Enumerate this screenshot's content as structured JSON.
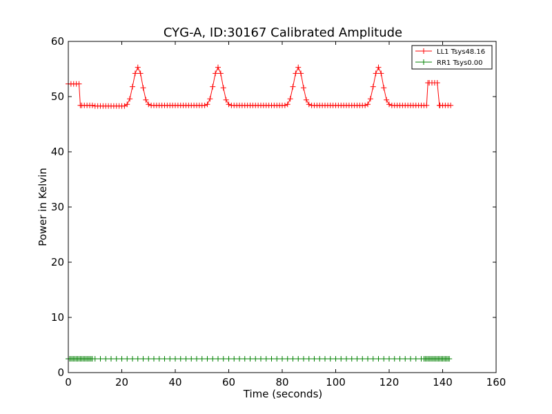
{
  "chart_data": {
    "type": "line",
    "title": "CYG-A, ID:30167 Calibrated Amplitude",
    "xlabel": "Time (seconds)",
    "ylabel": "Power in Kelvin",
    "xlim": [
      0,
      160
    ],
    "ylim": [
      0,
      60
    ],
    "xticks": [
      "0",
      "20",
      "40",
      "60",
      "80",
      "100",
      "120",
      "140",
      "160"
    ],
    "yticks": [
      "0",
      "10",
      "20",
      "30",
      "40",
      "50",
      "60"
    ],
    "grid": false,
    "legend_position": "top-right",
    "series": [
      {
        "name": "LL1 Tsys48.16",
        "color": "#ff0000",
        "marker": "+",
        "points": [
          [
            0,
            52.3
          ],
          [
            1,
            52.3
          ],
          [
            2,
            52.3
          ],
          [
            3,
            52.3
          ],
          [
            4,
            52.3
          ],
          [
            4.5,
            48.4
          ],
          [
            5,
            48.4
          ],
          [
            6,
            48.4
          ],
          [
            7,
            48.4
          ],
          [
            8,
            48.4
          ],
          [
            9,
            48.4
          ],
          [
            10,
            48.3
          ],
          [
            11,
            48.3
          ],
          [
            12,
            48.3
          ],
          [
            13,
            48.3
          ],
          [
            14,
            48.3
          ],
          [
            15,
            48.3
          ],
          [
            16,
            48.3
          ],
          [
            17,
            48.3
          ],
          [
            18,
            48.3
          ],
          [
            19,
            48.3
          ],
          [
            20,
            48.3
          ],
          [
            21,
            48.3
          ],
          [
            22,
            48.6
          ],
          [
            23,
            49.6
          ],
          [
            24,
            51.8
          ],
          [
            25,
            54.2
          ],
          [
            26,
            55.3
          ],
          [
            27,
            54.2
          ],
          [
            28,
            51.6
          ],
          [
            29,
            49.4
          ],
          [
            30,
            48.6
          ],
          [
            31,
            48.4
          ],
          [
            32,
            48.4
          ],
          [
            33,
            48.4
          ],
          [
            34,
            48.4
          ],
          [
            35,
            48.4
          ],
          [
            36,
            48.4
          ],
          [
            37,
            48.4
          ],
          [
            38,
            48.4
          ],
          [
            39,
            48.4
          ],
          [
            40,
            48.4
          ],
          [
            41,
            48.4
          ],
          [
            42,
            48.4
          ],
          [
            43,
            48.4
          ],
          [
            44,
            48.4
          ],
          [
            45,
            48.4
          ],
          [
            46,
            48.4
          ],
          [
            47,
            48.4
          ],
          [
            48,
            48.4
          ],
          [
            49,
            48.4
          ],
          [
            50,
            48.4
          ],
          [
            51,
            48.4
          ],
          [
            52,
            48.6
          ],
          [
            53,
            49.6
          ],
          [
            54,
            51.8
          ],
          [
            55,
            54.2
          ],
          [
            56,
            55.3
          ],
          [
            57,
            54.2
          ],
          [
            58,
            51.6
          ],
          [
            59,
            49.4
          ],
          [
            60,
            48.6
          ],
          [
            61,
            48.4
          ],
          [
            62,
            48.4
          ],
          [
            63,
            48.4
          ],
          [
            64,
            48.4
          ],
          [
            65,
            48.4
          ],
          [
            66,
            48.4
          ],
          [
            67,
            48.4
          ],
          [
            68,
            48.4
          ],
          [
            69,
            48.4
          ],
          [
            70,
            48.4
          ],
          [
            71,
            48.4
          ],
          [
            72,
            48.4
          ],
          [
            73,
            48.4
          ],
          [
            74,
            48.4
          ],
          [
            75,
            48.4
          ],
          [
            76,
            48.4
          ],
          [
            77,
            48.4
          ],
          [
            78,
            48.4
          ],
          [
            79,
            48.4
          ],
          [
            80,
            48.4
          ],
          [
            81,
            48.4
          ],
          [
            82,
            48.6
          ],
          [
            83,
            49.6
          ],
          [
            84,
            51.8
          ],
          [
            85,
            54.2
          ],
          [
            86,
            55.3
          ],
          [
            87,
            54.2
          ],
          [
            88,
            51.6
          ],
          [
            89,
            49.4
          ],
          [
            90,
            48.6
          ],
          [
            91,
            48.4
          ],
          [
            92,
            48.4
          ],
          [
            93,
            48.4
          ],
          [
            94,
            48.4
          ],
          [
            95,
            48.4
          ],
          [
            96,
            48.4
          ],
          [
            97,
            48.4
          ],
          [
            98,
            48.4
          ],
          [
            99,
            48.4
          ],
          [
            100,
            48.4
          ],
          [
            101,
            48.4
          ],
          [
            102,
            48.4
          ],
          [
            103,
            48.4
          ],
          [
            104,
            48.4
          ],
          [
            105,
            48.4
          ],
          [
            106,
            48.4
          ],
          [
            107,
            48.4
          ],
          [
            108,
            48.4
          ],
          [
            109,
            48.4
          ],
          [
            110,
            48.4
          ],
          [
            111,
            48.4
          ],
          [
            112,
            48.6
          ],
          [
            113,
            49.6
          ],
          [
            114,
            51.8
          ],
          [
            115,
            54.2
          ],
          [
            116,
            55.3
          ],
          [
            117,
            54.2
          ],
          [
            118,
            51.6
          ],
          [
            119,
            49.4
          ],
          [
            120,
            48.6
          ],
          [
            121,
            48.4
          ],
          [
            122,
            48.4
          ],
          [
            123,
            48.4
          ],
          [
            124,
            48.4
          ],
          [
            125,
            48.4
          ],
          [
            126,
            48.4
          ],
          [
            127,
            48.4
          ],
          [
            128,
            48.4
          ],
          [
            129,
            48.4
          ],
          [
            130,
            48.4
          ],
          [
            131,
            48.4
          ],
          [
            132,
            48.4
          ],
          [
            133,
            48.4
          ],
          [
            134,
            48.4
          ],
          [
            134.5,
            52.5
          ],
          [
            135,
            52.5
          ],
          [
            136,
            52.5
          ],
          [
            137,
            52.5
          ],
          [
            138,
            52.5
          ],
          [
            138.8,
            48.4
          ],
          [
            139,
            48.4
          ],
          [
            140,
            48.4
          ],
          [
            141,
            48.4
          ],
          [
            142,
            48.4
          ],
          [
            143,
            48.4
          ]
        ]
      },
      {
        "name": "RR1 Tsys0.00",
        "color": "#008000",
        "marker": "+",
        "points": [
          [
            0,
            2.5
          ],
          [
            0.5,
            2.5
          ],
          [
            1,
            2.5
          ],
          [
            1.5,
            2.5
          ],
          [
            2,
            2.5
          ],
          [
            2.5,
            2.5
          ],
          [
            3,
            2.5
          ],
          [
            3.5,
            2.5
          ],
          [
            4,
            2.5
          ],
          [
            4.5,
            2.5
          ],
          [
            5,
            2.5
          ],
          [
            5.5,
            2.5
          ],
          [
            6,
            2.5
          ],
          [
            6.5,
            2.5
          ],
          [
            7,
            2.5
          ],
          [
            7.5,
            2.5
          ],
          [
            8,
            2.5
          ],
          [
            8.5,
            2.5
          ],
          [
            9,
            2.5
          ],
          [
            10,
            2.5
          ],
          [
            12,
            2.5
          ],
          [
            14,
            2.5
          ],
          [
            16,
            2.5
          ],
          [
            18,
            2.5
          ],
          [
            20,
            2.5
          ],
          [
            22,
            2.5
          ],
          [
            24,
            2.5
          ],
          [
            26,
            2.5
          ],
          [
            28,
            2.5
          ],
          [
            30,
            2.5
          ],
          [
            32,
            2.5
          ],
          [
            34,
            2.5
          ],
          [
            36,
            2.5
          ],
          [
            38,
            2.5
          ],
          [
            40,
            2.5
          ],
          [
            42,
            2.5
          ],
          [
            44,
            2.5
          ],
          [
            46,
            2.5
          ],
          [
            48,
            2.5
          ],
          [
            50,
            2.5
          ],
          [
            52,
            2.5
          ],
          [
            54,
            2.5
          ],
          [
            56,
            2.5
          ],
          [
            58,
            2.5
          ],
          [
            60,
            2.5
          ],
          [
            62,
            2.5
          ],
          [
            64,
            2.5
          ],
          [
            66,
            2.5
          ],
          [
            68,
            2.5
          ],
          [
            70,
            2.5
          ],
          [
            72,
            2.5
          ],
          [
            74,
            2.5
          ],
          [
            76,
            2.5
          ],
          [
            78,
            2.5
          ],
          [
            80,
            2.5
          ],
          [
            82,
            2.5
          ],
          [
            84,
            2.5
          ],
          [
            86,
            2.5
          ],
          [
            88,
            2.5
          ],
          [
            90,
            2.5
          ],
          [
            92,
            2.5
          ],
          [
            94,
            2.5
          ],
          [
            96,
            2.5
          ],
          [
            98,
            2.5
          ],
          [
            100,
            2.5
          ],
          [
            102,
            2.5
          ],
          [
            104,
            2.5
          ],
          [
            106,
            2.5
          ],
          [
            108,
            2.5
          ],
          [
            110,
            2.5
          ],
          [
            112,
            2.5
          ],
          [
            114,
            2.5
          ],
          [
            116,
            2.5
          ],
          [
            118,
            2.5
          ],
          [
            120,
            2.5
          ],
          [
            122,
            2.5
          ],
          [
            124,
            2.5
          ],
          [
            126,
            2.5
          ],
          [
            128,
            2.5
          ],
          [
            130,
            2.5
          ],
          [
            132,
            2.5
          ],
          [
            133,
            2.5
          ],
          [
            133.5,
            2.5
          ],
          [
            134,
            2.5
          ],
          [
            134.5,
            2.5
          ],
          [
            135,
            2.5
          ],
          [
            135.5,
            2.5
          ],
          [
            136,
            2.5
          ],
          [
            136.5,
            2.5
          ],
          [
            137,
            2.5
          ],
          [
            137.5,
            2.5
          ],
          [
            138,
            2.5
          ],
          [
            138.5,
            2.5
          ],
          [
            139,
            2.5
          ],
          [
            139.5,
            2.5
          ],
          [
            140,
            2.5
          ],
          [
            140.5,
            2.5
          ],
          [
            141,
            2.5
          ],
          [
            141.5,
            2.5
          ],
          [
            142,
            2.5
          ],
          [
            142.5,
            2.5
          ]
        ]
      }
    ]
  }
}
